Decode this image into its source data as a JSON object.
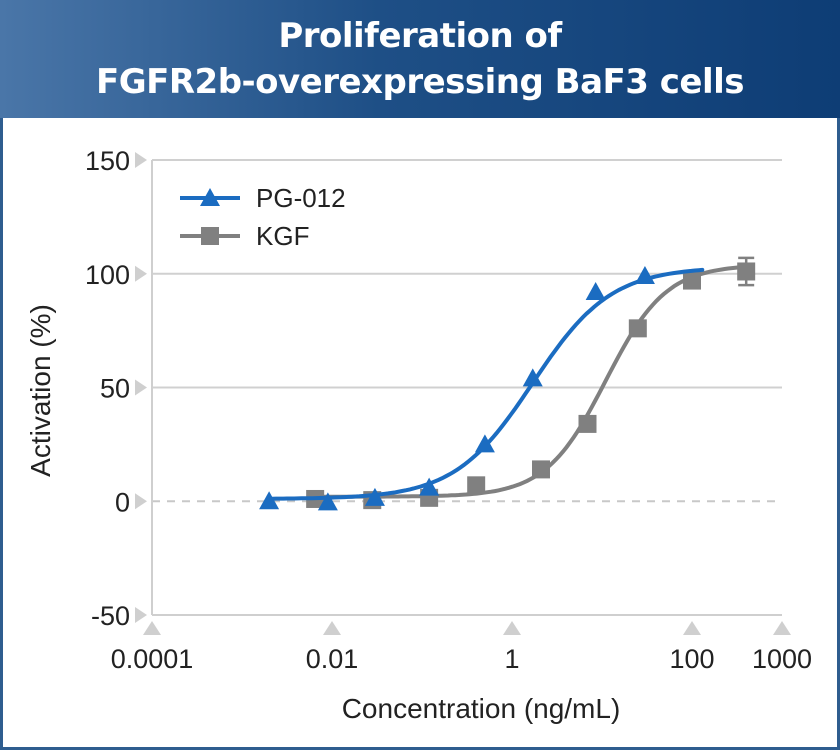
{
  "header": {
    "title_line1": "Proliferation of",
    "title_line2": "FGFR2b-overexpressing BaF3 cells"
  },
  "chart_data": {
    "type": "line",
    "title": "Proliferation of FGFR2b-overexpressing BaF3 cells",
    "xlabel": "Concentration (ng/mL)",
    "ylabel": "Activation (%)",
    "x_scale": "log",
    "xlim": [
      0.0001,
      1000
    ],
    "ylim": [
      -50,
      150
    ],
    "x_ticks": [
      "0.0001",
      "0.01",
      "1",
      "100",
      "1000"
    ],
    "x_tick_values": [
      0.0001,
      0.01,
      1,
      100,
      1000
    ],
    "y_ticks": [
      "150",
      "100",
      "50",
      "0",
      "-50"
    ],
    "y_tick_values": [
      150,
      100,
      50,
      0,
      -50
    ],
    "grid": true,
    "zero_line": "dashed",
    "legend_position": "top-left",
    "series": [
      {
        "name": "PG-012",
        "color": "#1b6cc1",
        "marker": "triangle",
        "points": [
          {
            "x": 0.002,
            "y": 0
          },
          {
            "x": 0.009,
            "y": -0.5
          },
          {
            "x": 0.03,
            "y": 1.5
          },
          {
            "x": 0.12,
            "y": 6
          },
          {
            "x": 0.5,
            "y": 25
          },
          {
            "x": 1.7,
            "y": 54
          },
          {
            "x": 8.5,
            "y": 92
          },
          {
            "x": 30,
            "y": 99
          }
        ],
        "fit": {
          "bottom": 1,
          "top": 103,
          "ec50": 1.7,
          "hill": 1.0,
          "x_range": [
            0.002,
            130
          ]
        }
      },
      {
        "name": "KGF",
        "color": "#808080",
        "marker": "square",
        "points": [
          {
            "x": 0.0065,
            "y": 1
          },
          {
            "x": 0.028,
            "y": 0.5
          },
          {
            "x": 0.12,
            "y": 1.5
          },
          {
            "x": 0.4,
            "y": 7
          },
          {
            "x": 2.1,
            "y": 14
          },
          {
            "x": 6.9,
            "y": 34
          },
          {
            "x": 25,
            "y": 76
          },
          {
            "x": 100,
            "y": 97
          },
          {
            "x": 400,
            "y": 101,
            "err": 6
          }
        ],
        "fit": {
          "bottom": 2,
          "top": 104,
          "ec50": 11,
          "hill": 1.3,
          "x_range": [
            0.0065,
            400
          ]
        }
      }
    ]
  }
}
